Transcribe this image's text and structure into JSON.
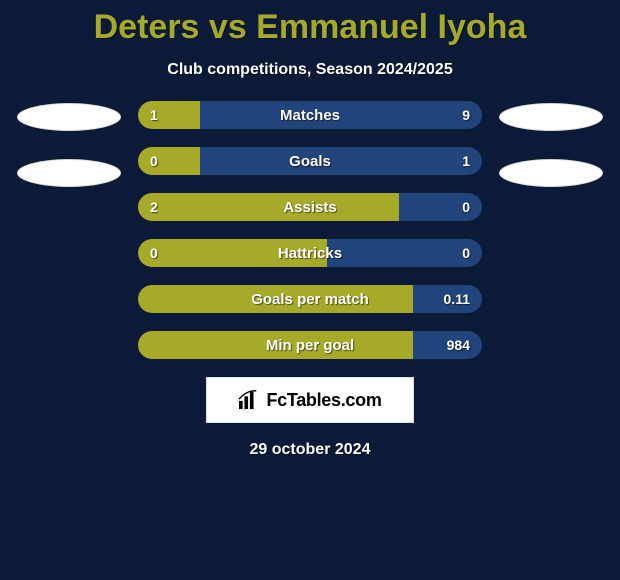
{
  "background_color": "#0a1a37",
  "title_color": "#a7a92b",
  "subtitle_color": "#ffffff",
  "date_color": "#ffffff",
  "title": "Deters vs Emmanuel Iyoha",
  "subtitle": "Club competitions, Season 2024/2025",
  "date": "29 october 2024",
  "bar": {
    "left_color": "#a7a92b",
    "right_color": "#21447b",
    "radius": 14
  },
  "rows": [
    {
      "label": "Matches",
      "left_val": "1",
      "right_val": "9",
      "left_pct": 18,
      "right_pct": 82
    },
    {
      "label": "Goals",
      "left_val": "0",
      "right_val": "1",
      "left_pct": 18,
      "right_pct": 82
    },
    {
      "label": "Assists",
      "left_val": "2",
      "right_val": "0",
      "left_pct": 76,
      "right_pct": 24
    },
    {
      "label": "Hattricks",
      "left_val": "0",
      "right_val": "0",
      "left_pct": 55,
      "right_pct": 45
    },
    {
      "label": "Goals per match",
      "left_val": "",
      "right_val": "0.11",
      "left_pct": 80,
      "right_pct": 20
    },
    {
      "label": "Min per goal",
      "left_val": "",
      "right_val": "984",
      "left_pct": 80,
      "right_pct": 20
    }
  ],
  "logo_text": "FcTables.com"
}
